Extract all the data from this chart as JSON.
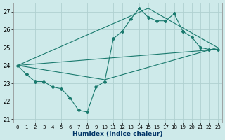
{
  "xlabel": "Humidex (Indice chaleur)",
  "background_color": "#ceeaea",
  "grid_color": "#b0d0d0",
  "line_color": "#1a7a6e",
  "xlim": [
    -0.5,
    23.5
  ],
  "ylim": [
    20.8,
    27.5
  ],
  "yticks": [
    21,
    22,
    23,
    24,
    25,
    26,
    27
  ],
  "xticks": [
    0,
    1,
    2,
    3,
    4,
    5,
    6,
    7,
    8,
    9,
    10,
    11,
    12,
    13,
    14,
    15,
    16,
    17,
    18,
    19,
    20,
    21,
    22,
    23
  ],
  "zigzag_x": [
    0,
    1,
    2,
    3,
    4,
    5,
    6,
    7,
    8,
    9,
    10,
    11,
    12,
    13,
    14,
    15,
    16,
    17,
    18,
    19,
    20,
    21,
    22,
    23
  ],
  "zigzag_y": [
    24.0,
    23.5,
    23.1,
    23.1,
    22.8,
    22.7,
    22.2,
    21.5,
    21.4,
    22.8,
    23.1,
    25.5,
    25.9,
    26.6,
    27.2,
    26.7,
    26.5,
    26.5,
    26.9,
    25.9,
    25.6,
    25.0,
    24.9,
    24.9
  ],
  "line1_x": [
    0,
    23
  ],
  "line1_y": [
    24.0,
    24.9
  ],
  "line2_x": [
    0,
    10,
    23
  ],
  "line2_y": [
    24.0,
    23.2,
    25.0
  ],
  "line3_x": [
    0,
    15,
    23
  ],
  "line3_y": [
    24.0,
    27.2,
    25.0
  ]
}
